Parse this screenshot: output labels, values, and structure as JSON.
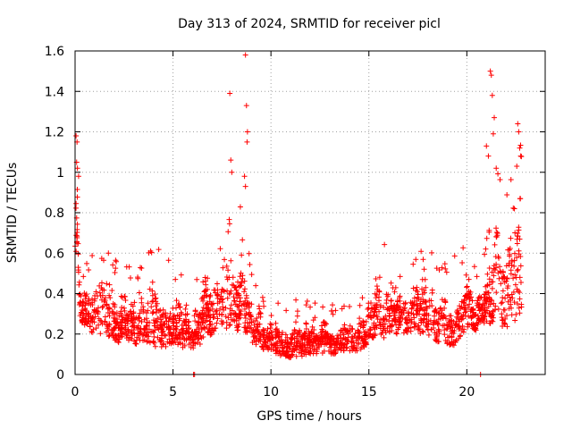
{
  "chart_data": {
    "type": "scatter",
    "title": "Day 313 of 2024, SRMTID for receiver picl",
    "xlabel": "GPS time / hours",
    "ylabel": "SRMTID / TECUs",
    "xlim": [
      0,
      24
    ],
    "ylim": [
      0,
      1.6
    ],
    "xticks": [
      0,
      5,
      10,
      15,
      20
    ],
    "yticks": [
      0,
      0.2,
      0.4,
      0.6,
      0.8,
      1.0,
      1.2,
      1.4,
      1.6
    ],
    "xtick_labels": [
      "0",
      "5",
      "10",
      "15",
      "20"
    ],
    "ytick_labels": [
      "0",
      "0.2",
      "0.4",
      "0.6",
      "0.8",
      "1",
      "1.2",
      "1.4",
      "1.6"
    ],
    "grid": true,
    "marker": "plus",
    "color": "#ff0000",
    "envelope": {
      "x": [
        0,
        0.1,
        0.25,
        0.5,
        1.0,
        1.5,
        2.0,
        2.5,
        3.0,
        3.5,
        4.0,
        4.5,
        5.0,
        5.5,
        6.0,
        6.5,
        7.0,
        7.5,
        8.0,
        8.5,
        8.8,
        9.0,
        9.5,
        10.0,
        10.5,
        11.0,
        11.5,
        12.0,
        12.5,
        13.0,
        13.5,
        14.0,
        14.5,
        15.0,
        15.5,
        16.0,
        16.5,
        17.0,
        17.5,
        18.0,
        18.5,
        19.0,
        19.5,
        20.0,
        20.5,
        21.0,
        21.5,
        22.0,
        22.5,
        22.8
      ],
      "low": [
        0.45,
        0.6,
        0.28,
        0.22,
        0.2,
        0.17,
        0.15,
        0.16,
        0.15,
        0.15,
        0.12,
        0.13,
        0.15,
        0.13,
        0.12,
        0.15,
        0.2,
        0.22,
        0.22,
        0.2,
        0.18,
        0.15,
        0.12,
        0.1,
        0.09,
        0.08,
        0.08,
        0.1,
        0.1,
        0.1,
        0.1,
        0.1,
        0.12,
        0.15,
        0.18,
        0.18,
        0.2,
        0.2,
        0.2,
        0.2,
        0.15,
        0.13,
        0.15,
        0.2,
        0.22,
        0.25,
        0.25,
        0.22,
        0.25,
        0.3
      ],
      "high": [
        1.05,
        0.9,
        0.55,
        0.45,
        0.6,
        0.55,
        0.5,
        0.45,
        0.45,
        0.5,
        0.6,
        0.5,
        0.45,
        0.45,
        0.3,
        0.55,
        0.65,
        0.6,
        0.7,
        0.75,
        0.6,
        0.45,
        0.35,
        0.3,
        0.3,
        0.32,
        0.3,
        0.32,
        0.3,
        0.3,
        0.28,
        0.3,
        0.32,
        0.45,
        0.6,
        0.5,
        0.45,
        0.5,
        0.55,
        0.55,
        0.5,
        0.45,
        0.5,
        0.55,
        0.45,
        0.6,
        0.9,
        0.85,
        0.8,
        1.05
      ]
    },
    "outliers": [
      {
        "x": 0.05,
        "y": 1.18
      },
      {
        "x": 0.1,
        "y": 1.15
      },
      {
        "x": 0.08,
        "y": 1.05
      },
      {
        "x": 0.12,
        "y": 1.02
      },
      {
        "x": 0.18,
        "y": 0.98
      },
      {
        "x": 7.9,
        "y": 1.39
      },
      {
        "x": 7.95,
        "y": 1.06
      },
      {
        "x": 8.0,
        "y": 1.0
      },
      {
        "x": 8.7,
        "y": 1.58
      },
      {
        "x": 8.75,
        "y": 1.33
      },
      {
        "x": 8.8,
        "y": 1.2
      },
      {
        "x": 8.78,
        "y": 1.15
      },
      {
        "x": 8.65,
        "y": 0.98
      },
      {
        "x": 8.7,
        "y": 0.93
      },
      {
        "x": 21.2,
        "y": 1.5
      },
      {
        "x": 21.25,
        "y": 1.48
      },
      {
        "x": 21.3,
        "y": 1.38
      },
      {
        "x": 21.35,
        "y": 1.19
      },
      {
        "x": 21.0,
        "y": 1.13
      },
      {
        "x": 21.1,
        "y": 1.08
      },
      {
        "x": 21.5,
        "y": 1.02
      },
      {
        "x": 22.6,
        "y": 1.24
      },
      {
        "x": 22.65,
        "y": 1.2
      },
      {
        "x": 22.7,
        "y": 1.12
      },
      {
        "x": 22.75,
        "y": 1.08
      },
      {
        "x": 22.55,
        "y": 1.03
      },
      {
        "x": 21.4,
        "y": 1.27
      },
      {
        "x": 20.7,
        "y": 0.0
      },
      {
        "x": 6.05,
        "y": 0.0
      },
      {
        "x": 6.1,
        "y": 0.0
      }
    ],
    "n_points": 2200,
    "seed": 313
  }
}
